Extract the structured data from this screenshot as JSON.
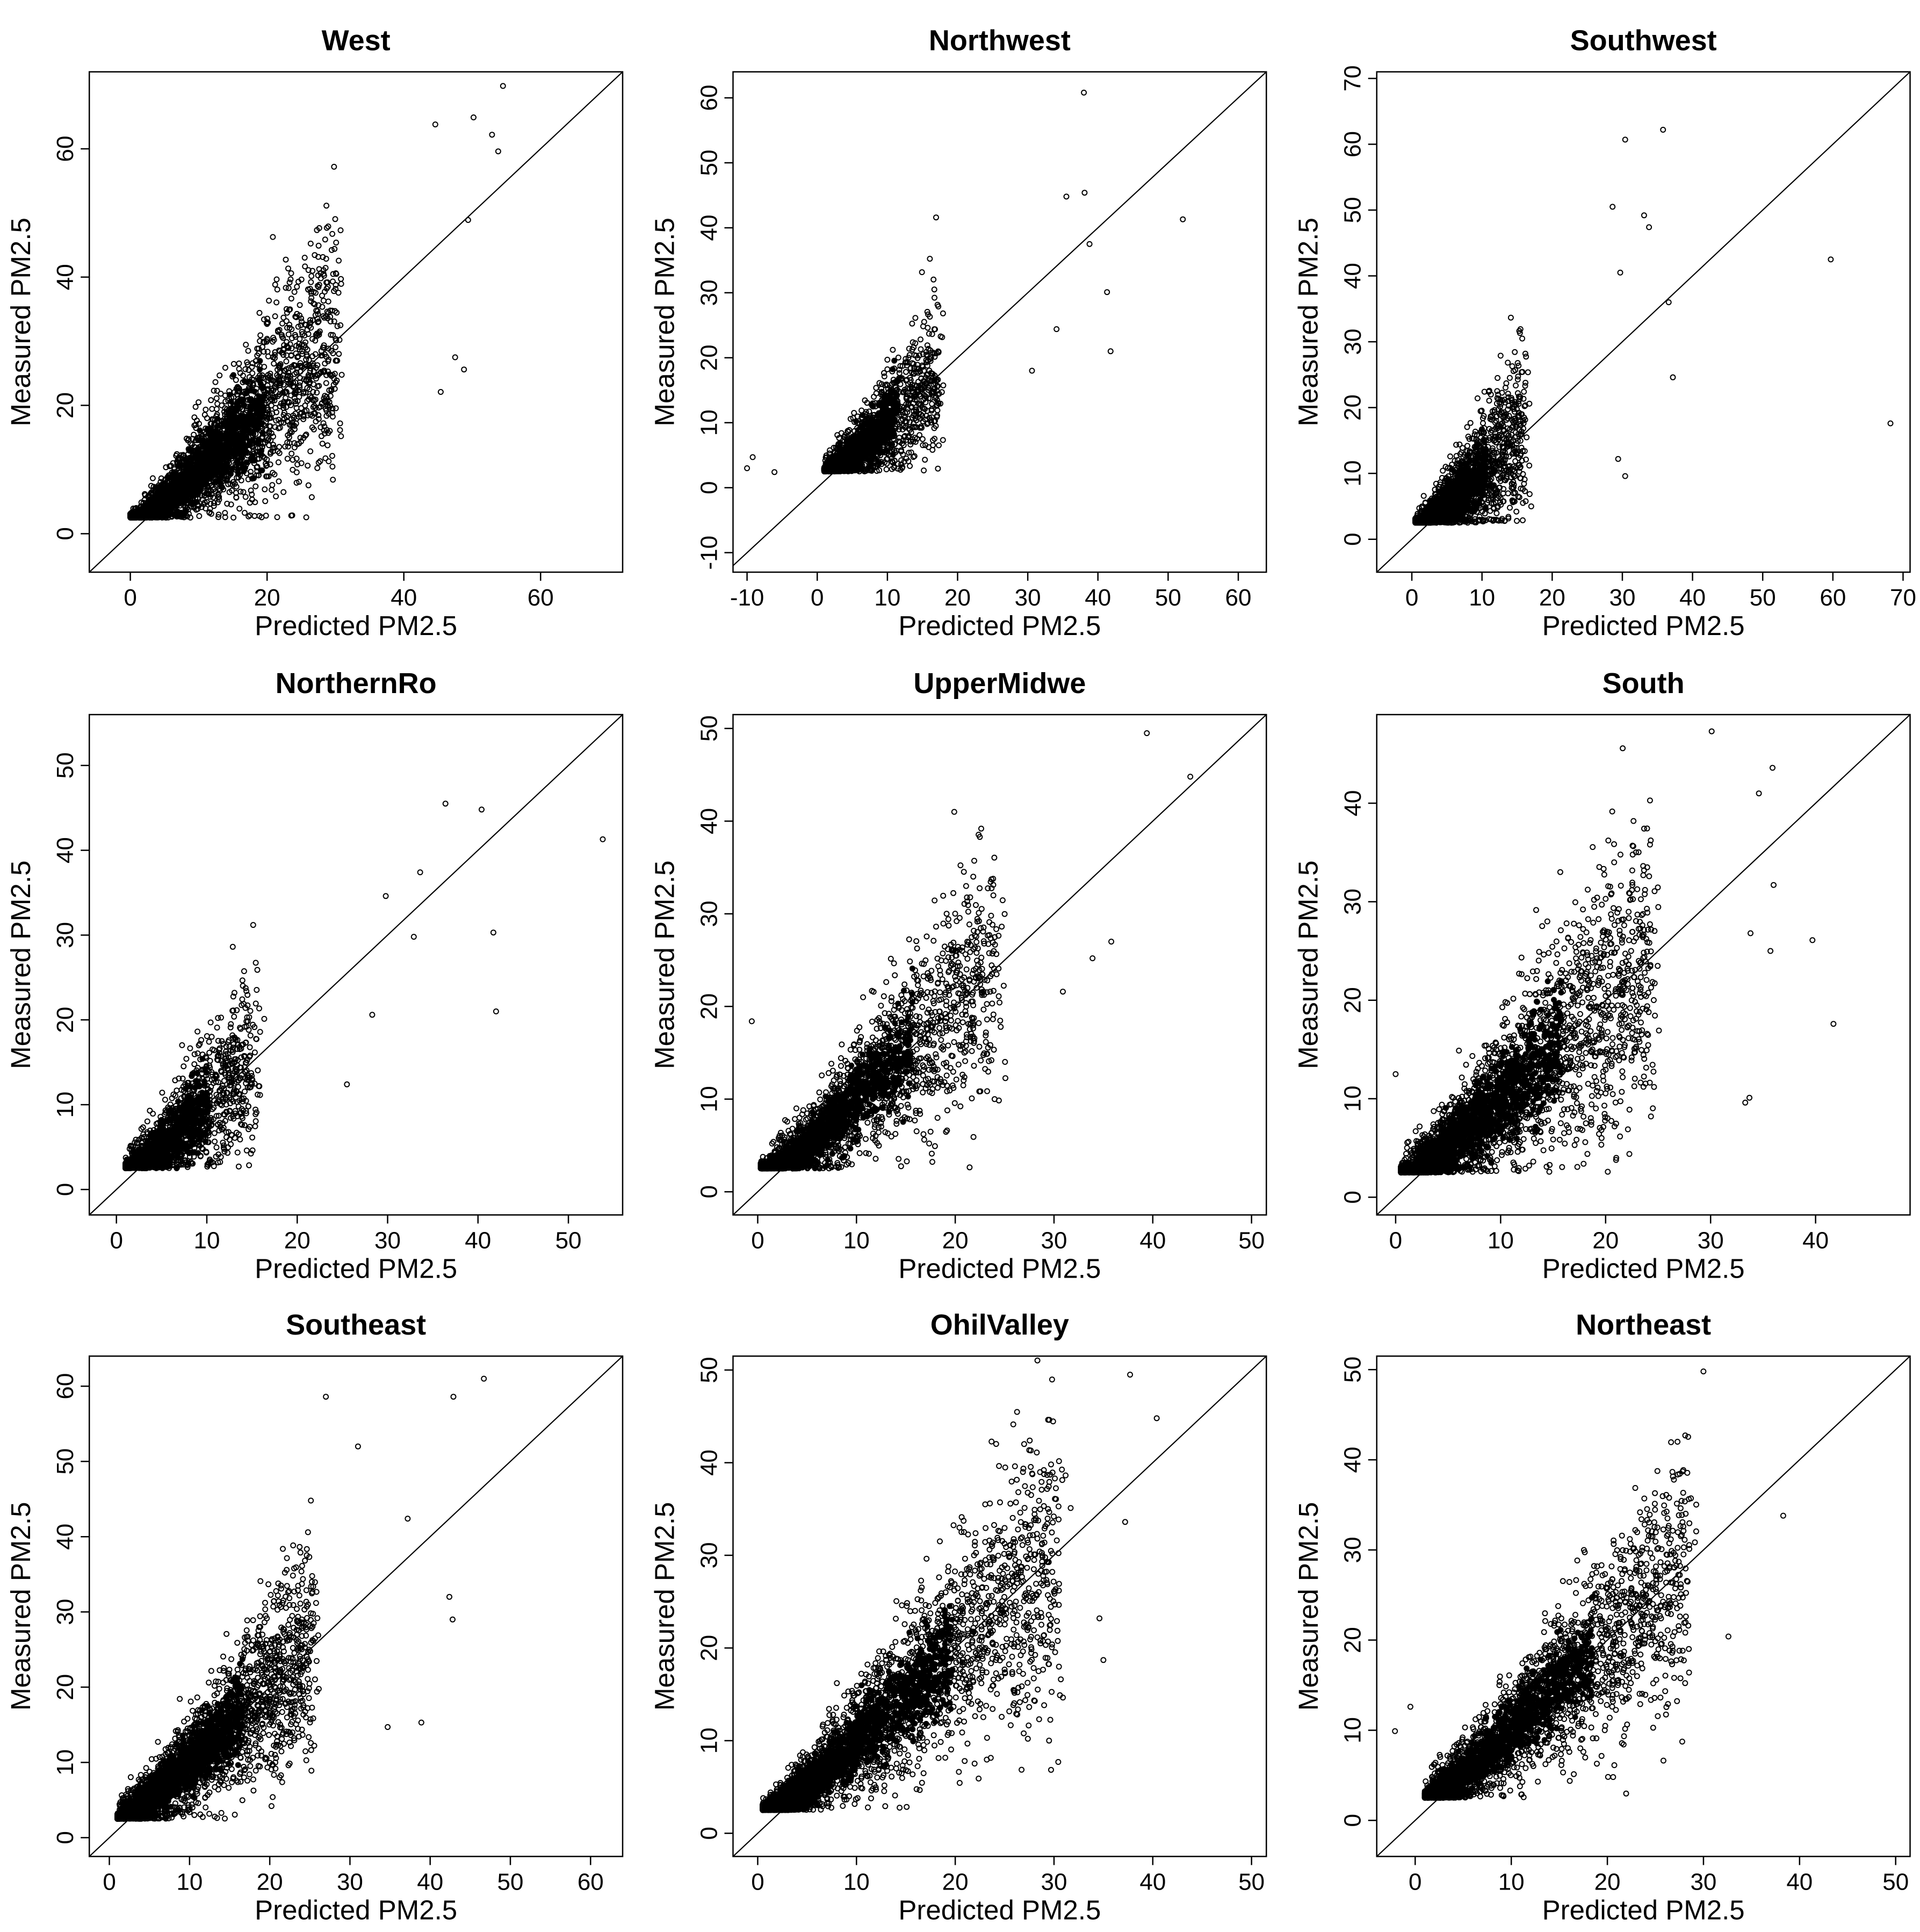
{
  "chart_data": [
    {
      "type": "scatter",
      "title": "West",
      "xlabel": "Predicted PM2.5",
      "ylabel": "Measured PM2.5",
      "xlim": [
        -6,
        72
      ],
      "ylim": [
        -6,
        72
      ],
      "xticks": [
        0,
        20,
        40,
        60
      ],
      "yticks": [
        0,
        20,
        40,
        60
      ],
      "spread": 0.34,
      "xmax_core": 30,
      "xmin_core": 0,
      "floor": 2.5,
      "n_points": 2600,
      "seed": 1,
      "outliers": [
        [
          54.5,
          69.8
        ],
        [
          50.2,
          64.9
        ],
        [
          52.9,
          62.2
        ],
        [
          53.8,
          59.6
        ],
        [
          44.6,
          63.8
        ],
        [
          49.4,
          48.9
        ],
        [
          47.5,
          27.5
        ],
        [
          48.8,
          25.6
        ],
        [
          45.4,
          22.1
        ]
      ]
    },
    {
      "type": "scatter",
      "title": "Northwest",
      "xlabel": "Predicted PM2.5",
      "ylabel": "Measured PM2.5",
      "xlim": [
        -12,
        64
      ],
      "ylim": [
        -13,
        64
      ],
      "xticks": [
        -10,
        0,
        10,
        20,
        30,
        40,
        50,
        60
      ],
      "yticks": [
        -10,
        0,
        10,
        20,
        30,
        40,
        50,
        60
      ],
      "spread": 0.38,
      "xmax_core": 17,
      "xmin_core": 1,
      "floor": 2.5,
      "n_points": 1400,
      "seed": 2,
      "outliers": [
        [
          38.0,
          60.8
        ],
        [
          38.1,
          45.4
        ],
        [
          35.5,
          44.8
        ],
        [
          52.1,
          41.3
        ],
        [
          38.8,
          37.5
        ],
        [
          41.3,
          30.1
        ],
        [
          34.1,
          24.4
        ],
        [
          41.8,
          21.0
        ],
        [
          30.6,
          18.0
        ],
        [
          -10.0,
          3.0
        ],
        [
          -9.2,
          4.7
        ],
        [
          -6.1,
          2.4
        ]
      ]
    },
    {
      "type": "scatter",
      "title": "Southwest",
      "xlabel": "Predicted PM2.5",
      "ylabel": "Measured PM2.5",
      "xlim": [
        -5,
        71
      ],
      "ylim": [
        -5,
        71
      ],
      "xticks": [
        0,
        10,
        20,
        30,
        40,
        50,
        60,
        70
      ],
      "yticks": [
        0,
        10,
        20,
        30,
        40,
        50,
        60,
        70
      ],
      "spread": 0.45,
      "xmax_core": 16,
      "xmin_core": 0.5,
      "floor": 2.5,
      "n_points": 1700,
      "seed": 3,
      "outliers": [
        [
          35.8,
          62.2
        ],
        [
          30.4,
          60.7
        ],
        [
          28.6,
          50.5
        ],
        [
          33.1,
          49.2
        ],
        [
          33.8,
          47.4
        ],
        [
          59.7,
          42.5
        ],
        [
          29.7,
          40.5
        ],
        [
          36.6,
          36.0
        ],
        [
          37.2,
          24.6
        ],
        [
          68.2,
          17.6
        ],
        [
          29.4,
          12.2
        ],
        [
          30.4,
          9.6
        ]
      ]
    },
    {
      "type": "scatter",
      "title": "NorthernRo",
      "xlabel": "Predicted PM2.5",
      "ylabel": "Measured PM2.5",
      "xlim": [
        -3,
        56
      ],
      "ylim": [
        -3,
        56
      ],
      "xticks": [
        0,
        10,
        20,
        30,
        40,
        50
      ],
      "yticks": [
        0,
        10,
        20,
        30,
        40,
        50
      ],
      "spread": 0.35,
      "xmax_core": 15,
      "xmin_core": 1,
      "floor": 2.5,
      "n_points": 1500,
      "seed": 4,
      "outliers": [
        [
          36.4,
          45.5
        ],
        [
          40.4,
          44.8
        ],
        [
          53.8,
          41.3
        ],
        [
          33.6,
          37.4
        ],
        [
          29.8,
          34.6
        ],
        [
          41.7,
          30.3
        ],
        [
          32.9,
          29.8
        ],
        [
          42.0,
          21.0
        ],
        [
          28.3,
          20.6
        ],
        [
          25.5,
          12.4
        ]
      ]
    },
    {
      "type": "scatter",
      "title": "UpperMidwe",
      "xlabel": "Predicted PM2.5",
      "ylabel": "Measured PM2.5",
      "xlim": [
        -2.5,
        51.5
      ],
      "ylim": [
        -2.5,
        51.5
      ],
      "xticks": [
        0,
        10,
        20,
        30,
        40,
        50
      ],
      "yticks": [
        0,
        10,
        20,
        30,
        40,
        50
      ],
      "spread": 0.3,
      "xmax_core": 24,
      "xmin_core": 0.3,
      "floor": 2.5,
      "n_points": 2200,
      "seed": 5,
      "outliers": [
        [
          39.4,
          49.5
        ],
        [
          43.8,
          44.8
        ],
        [
          19.9,
          41.0
        ],
        [
          -0.6,
          18.4
        ],
        [
          35.8,
          27.0
        ],
        [
          33.9,
          25.2
        ],
        [
          30.9,
          21.6
        ]
      ]
    },
    {
      "type": "scatter",
      "title": "South",
      "xlabel": "Predicted PM2.5",
      "ylabel": "Measured PM2.5",
      "xlim": [
        -1.8,
        49
      ],
      "ylim": [
        -1.8,
        49
      ],
      "xticks": [
        0,
        10,
        20,
        30,
        40
      ],
      "yticks": [
        0,
        10,
        20,
        30,
        40
      ],
      "spread": 0.35,
      "xmax_core": 24,
      "xmin_core": 0.5,
      "floor": 2.5,
      "n_points": 2600,
      "seed": 6,
      "outliers": [
        [
          30.1,
          47.3
        ],
        [
          35.9,
          43.6
        ],
        [
          34.6,
          41.0
        ],
        [
          41.7,
          17.6
        ],
        [
          39.7,
          26.1
        ],
        [
          36.0,
          31.7
        ],
        [
          35.7,
          25.0
        ],
        [
          33.8,
          26.8
        ],
        [
          33.7,
          10.1
        ],
        [
          33.3,
          9.6
        ],
        [
          0.0,
          12.5
        ]
      ]
    },
    {
      "type": "scatter",
      "title": "Southeast",
      "xlabel": "Predicted PM2.5",
      "ylabel": "Measured PM2.5",
      "xlim": [
        -2.5,
        64
      ],
      "ylim": [
        -2.5,
        64
      ],
      "xticks": [
        0,
        10,
        20,
        30,
        40,
        50,
        60
      ],
      "yticks": [
        0,
        10,
        20,
        30,
        40,
        50,
        60
      ],
      "spread": 0.28,
      "xmax_core": 25,
      "xmin_core": 1,
      "floor": 2.5,
      "n_points": 2600,
      "seed": 7,
      "outliers": [
        [
          46.7,
          61.0
        ],
        [
          27.0,
          58.6
        ],
        [
          42.9,
          58.6
        ],
        [
          31.0,
          52.0
        ],
        [
          37.2,
          42.4
        ],
        [
          38.9,
          15.3
        ],
        [
          34.7,
          14.7
        ],
        [
          42.4,
          32.0
        ],
        [
          42.8,
          29.0
        ]
      ]
    },
    {
      "type": "scatter",
      "title": "OhilValley",
      "xlabel": "Predicted PM2.5",
      "ylabel": "Measured PM2.5",
      "xlim": [
        -2.5,
        51.5
      ],
      "ylim": [
        -2.5,
        51.5
      ],
      "xticks": [
        0,
        10,
        20,
        30,
        40,
        50
      ],
      "yticks": [
        0,
        10,
        20,
        30,
        40,
        50
      ],
      "spread": 0.27,
      "xmax_core": 30,
      "xmin_core": 0.5,
      "floor": 2.5,
      "n_points": 2800,
      "seed": 8,
      "outliers": [
        [
          37.7,
          49.5
        ],
        [
          40.4,
          44.8
        ],
        [
          37.2,
          33.6
        ],
        [
          34.6,
          23.2
        ],
        [
          35.0,
          18.7
        ],
        [
          30.6,
          14.9
        ],
        [
          29.5,
          10.0
        ]
      ]
    },
    {
      "type": "scatter",
      "title": "Northeast",
      "xlabel": "Predicted PM2.5",
      "ylabel": "Measured PM2.5",
      "xlim": [
        -4,
        51.5
      ],
      "ylim": [
        -4,
        51.5
      ],
      "xticks": [
        0,
        10,
        20,
        30,
        40,
        50
      ],
      "yticks": [
        0,
        10,
        20,
        30,
        40,
        50
      ],
      "spread": 0.26,
      "xmax_core": 28,
      "xmin_core": 1,
      "floor": 2.5,
      "n_points": 2400,
      "seed": 9,
      "outliers": [
        [
          30.0,
          49.8
        ],
        [
          28.1,
          42.7
        ],
        [
          27.3,
          42.0
        ],
        [
          38.3,
          33.8
        ],
        [
          -2.1,
          9.9
        ],
        [
          -0.5,
          12.6
        ],
        [
          32.6,
          20.4
        ],
        [
          28.5,
          16.4
        ]
      ]
    }
  ]
}
